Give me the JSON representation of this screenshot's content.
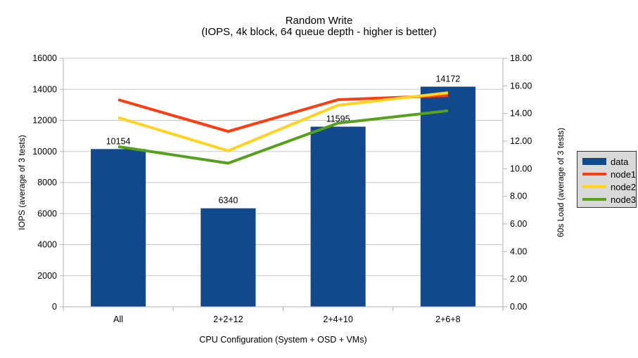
{
  "title": "Random Write",
  "subtitle": "(IOPS, 4k block, 64 queue depth - higher is better)",
  "chart_data": {
    "type": "combo-bar-line",
    "categories": [
      "All",
      "2+2+12",
      "2+4+10",
      "2+6+8"
    ],
    "series": [
      {
        "name": "data",
        "type": "bar",
        "axis": "left",
        "color": "#11498c",
        "values": [
          10154,
          6340,
          11595,
          14172
        ],
        "value_labels": [
          "10154",
          "6340",
          "11595",
          "14172"
        ]
      },
      {
        "name": "node1",
        "type": "line",
        "axis": "right",
        "color": "#fd3d11",
        "values": [
          15.0,
          12.7,
          15.0,
          15.3
        ]
      },
      {
        "name": "node2",
        "type": "line",
        "axis": "right",
        "color": "#ffd320",
        "values": [
          13.7,
          11.3,
          14.6,
          15.5
        ]
      },
      {
        "name": "node3",
        "type": "line",
        "axis": "right",
        "color": "#57a01e",
        "values": [
          11.6,
          10.4,
          13.3,
          14.2
        ]
      }
    ],
    "x_axis": {
      "title": "CPU Configuration (System + OSD + VMs)"
    },
    "left_axis": {
      "title": "IOPS (average of 3 tests)",
      "min": 0,
      "max": 16000,
      "step": 2000,
      "decimals": 0
    },
    "right_axis": {
      "title": "60s Load (average of 3 tests)",
      "min": 0,
      "max": 18,
      "step": 2,
      "decimals": 2
    },
    "grid": true,
    "legend_position": "right",
    "colors": {
      "gridline": "#c8c8c8",
      "axis_line": "#b3b3b3",
      "legend_background": "#d9d9d9",
      "legend_border": "#333333",
      "text": "#000000"
    }
  }
}
